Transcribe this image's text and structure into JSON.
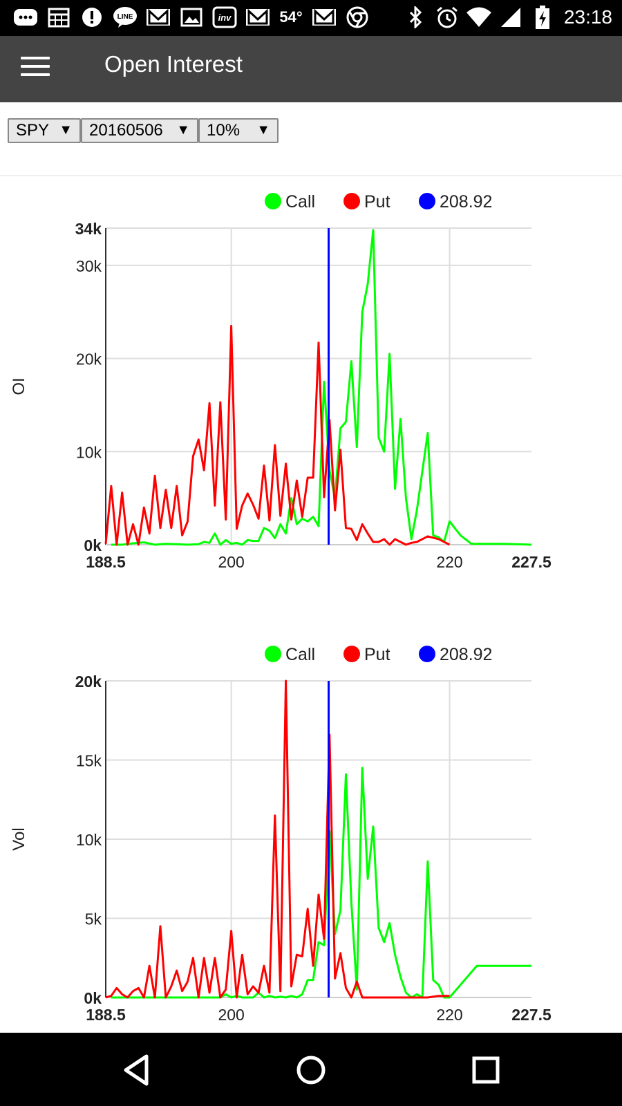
{
  "status_bar": {
    "time": "23:18",
    "temperature": "54°",
    "left_icons": [
      "chat-icon",
      "calendar-icon",
      "alert-icon",
      "line-icon",
      "gmail-icon",
      "image-icon",
      "investing-icon",
      "gmail-icon",
      "temp",
      "gmail-icon",
      "chrome-icon"
    ],
    "right_icons": [
      "bluetooth-icon",
      "alarm-icon",
      "wifi-icon",
      "signal-icon",
      "battery-charging-icon"
    ]
  },
  "app_bar": {
    "title": "Open Interest",
    "menu_icon": "hamburger-menu-icon"
  },
  "controls": {
    "symbol": "SPY",
    "expiry": "20160506",
    "range": "10%",
    "arrow": "▼"
  },
  "colors": {
    "call": "#00ff00",
    "put": "#ff0000",
    "price": "#0000ff",
    "appbar": "#444444",
    "grid": "#dddddd"
  },
  "chart_data": [
    {
      "type": "line",
      "ylabel": "OI",
      "xlim": [
        188.5,
        227.5
      ],
      "ylim": [
        0,
        34000
      ],
      "x_ticks": [
        "188.5",
        "200",
        "220",
        "227.5"
      ],
      "x_tick_values": [
        188.5,
        200,
        220,
        227.5
      ],
      "x_tick_bold": [
        true,
        false,
        false,
        true
      ],
      "y_ticks": [
        "0k",
        "10k",
        "20k",
        "30k",
        "34k"
      ],
      "y_tick_values": [
        0,
        10000,
        20000,
        30000,
        34000
      ],
      "y_tick_bold": [
        true,
        false,
        false,
        false,
        true
      ],
      "legend": [
        "Call",
        "Put",
        "208.92"
      ],
      "price_line": 208.92,
      "series": [
        {
          "name": "Call",
          "color": "#00ff00",
          "x": [
            189,
            190,
            191,
            192,
            193,
            194,
            195,
            196,
            197,
            197.5,
            198,
            198.5,
            199,
            199.5,
            200,
            200.5,
            201,
            201.5,
            202,
            202.5,
            203,
            203.5,
            204,
            204.5,
            205,
            205.5,
            206,
            206.5,
            207,
            207.5,
            208,
            208.5,
            209,
            209.5,
            210,
            210.5,
            211,
            211.5,
            212,
            212.5,
            213,
            213.5,
            214,
            214.5,
            215,
            215.5,
            216,
            216.5,
            217,
            218,
            218.5,
            219,
            219.5,
            220,
            221,
            222,
            225,
            227.5
          ],
          "y": [
            0,
            0,
            150,
            250,
            0,
            100,
            50,
            0,
            50,
            300,
            200,
            1200,
            0,
            500,
            100,
            200,
            0,
            500,
            400,
            400,
            1800,
            1500,
            700,
            2200,
            1200,
            5000,
            2200,
            2800,
            2500,
            3000,
            2000,
            17500,
            8000,
            5000,
            12500,
            13200,
            19700,
            10500,
            25000,
            28000,
            33800,
            11500,
            10000,
            20500,
            6000,
            13500,
            5000,
            600,
            3700,
            12000,
            1000,
            800,
            300,
            2500,
            1000,
            100,
            100,
            0
          ]
        },
        {
          "name": "Put",
          "color": "#ff0000",
          "x": [
            188.5,
            189,
            189.5,
            190,
            190.5,
            191,
            191.5,
            192,
            192.5,
            193,
            193.5,
            194,
            194.5,
            195,
            195.5,
            196,
            196.5,
            197,
            197.5,
            198,
            198.5,
            199,
            199.5,
            200,
            200.5,
            201,
            201.5,
            202,
            202.5,
            203,
            203.5,
            204,
            204.5,
            205,
            205.5,
            206,
            206.5,
            207,
            207.5,
            208,
            208.5,
            209,
            209.5,
            210,
            210.5,
            211,
            211.5,
            212,
            212.5,
            213,
            213.5,
            214,
            214.5,
            215,
            215.5,
            216,
            216.5,
            217,
            218,
            219,
            220
          ],
          "y": [
            100,
            6300,
            0,
            5600,
            0,
            2200,
            0,
            4000,
            1200,
            7400,
            1800,
            5900,
            1800,
            6300,
            1000,
            2500,
            9500,
            11300,
            8000,
            15200,
            4200,
            15300,
            2700,
            23500,
            1700,
            4200,
            5500,
            4300,
            2800,
            8500,
            2600,
            10700,
            3100,
            8700,
            2700,
            6900,
            3000,
            7200,
            7200,
            21700,
            5100,
            13400,
            3700,
            10200,
            1800,
            1700,
            500,
            2200,
            1200,
            300,
            300,
            600,
            0,
            600,
            300,
            0,
            200,
            300,
            900,
            600,
            0
          ]
        }
      ]
    },
    {
      "type": "line",
      "ylabel": "Vol",
      "xlim": [
        188.5,
        227.5
      ],
      "ylim": [
        0,
        20000
      ],
      "x_ticks": [
        "188.5",
        "200",
        "220",
        "227.5"
      ],
      "x_tick_values": [
        188.5,
        200,
        220,
        227.5
      ],
      "x_tick_bold": [
        true,
        false,
        false,
        true
      ],
      "y_ticks": [
        "0k",
        "5k",
        "10k",
        "15k",
        "20k"
      ],
      "y_tick_values": [
        0,
        5000,
        10000,
        15000,
        20000
      ],
      "y_tick_bold": [
        true,
        false,
        false,
        false,
        true
      ],
      "legend": [
        "Call",
        "Put",
        "208.92"
      ],
      "price_line": 208.92,
      "series": [
        {
          "name": "Call",
          "color": "#00ff00",
          "x": [
            189,
            190,
            191,
            192,
            193,
            194,
            195,
            196,
            197,
            198,
            199,
            199.5,
            200,
            200.5,
            201,
            201.5,
            202,
            202.5,
            203,
            203.5,
            204,
            204.5,
            205,
            205.5,
            206,
            206.5,
            207,
            207.5,
            208,
            208.5,
            209,
            209.5,
            210,
            210.5,
            211,
            211.5,
            212,
            212.5,
            213,
            213.5,
            214,
            214.5,
            215,
            215.5,
            216,
            216.5,
            217,
            217.5,
            218,
            218.5,
            219,
            219.5,
            220,
            222.5,
            225,
            227.5
          ],
          "y": [
            0,
            0,
            0,
            0,
            0,
            0,
            0,
            0,
            0,
            0,
            0,
            200,
            0,
            100,
            0,
            0,
            0,
            300,
            0,
            100,
            0,
            50,
            0,
            100,
            0,
            200,
            1100,
            1100,
            3500,
            3300,
            10500,
            4000,
            5500,
            14100,
            6000,
            500,
            14500,
            7500,
            10800,
            4400,
            3500,
            4700,
            2700,
            1300,
            300,
            0,
            200,
            0,
            8600,
            1100,
            800,
            0,
            0,
            2000,
            2000,
            2000
          ]
        },
        {
          "name": "Put",
          "color": "#ff0000",
          "x": [
            188.5,
            189,
            189.5,
            190,
            190.5,
            191,
            191.5,
            192,
            192.5,
            193,
            193.5,
            194,
            194.5,
            195,
            195.5,
            196,
            196.5,
            197,
            197.5,
            198,
            198.5,
            199,
            199.5,
            200,
            200.5,
            201,
            201.5,
            202,
            202.5,
            203,
            203.5,
            204,
            204.5,
            205,
            205.5,
            206,
            206.5,
            207,
            207.5,
            208,
            208.5,
            209,
            209.5,
            210,
            210.5,
            211,
            211.5,
            212,
            212.5,
            213,
            214,
            215,
            216,
            217,
            218,
            219,
            220
          ],
          "y": [
            0,
            100,
            600,
            200,
            0,
            400,
            600,
            0,
            2000,
            0,
            4500,
            0,
            700,
            1700,
            400,
            1000,
            2500,
            0,
            2500,
            300,
            2500,
            0,
            500,
            4200,
            0,
            2700,
            200,
            700,
            300,
            2000,
            300,
            11500,
            400,
            20000,
            700,
            2700,
            2600,
            5600,
            2000,
            6500,
            3700,
            16600,
            1200,
            2800,
            600,
            0,
            1000,
            0,
            0,
            0,
            0,
            0,
            0,
            0,
            0,
            100,
            100
          ]
        }
      ]
    }
  ]
}
